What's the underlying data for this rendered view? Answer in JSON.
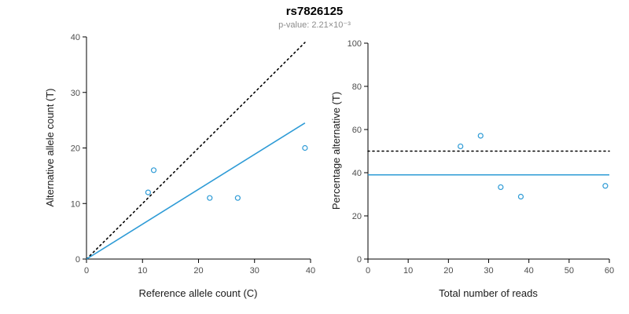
{
  "title": "rs7826125",
  "subtitle": "p-value: 2.21×10⁻³",
  "colors": {
    "points": "#2e9bd6",
    "fit_line": "#2e9bd6",
    "reference_line": "#000000",
    "subtitle_text": "#8c8c8c"
  },
  "chart_data": [
    {
      "type": "scatter",
      "title": "rs7826125",
      "subtitle": "p-value: 2.21×10⁻³",
      "xlabel": "Reference allele count (C)",
      "ylabel": "Alternative allele count (T)",
      "xlim": [
        0,
        40
      ],
      "ylim": [
        0,
        40
      ],
      "xticks": [
        0,
        10,
        20,
        30,
        40
      ],
      "yticks": [
        0,
        10,
        20,
        30,
        40
      ],
      "grid": false,
      "points": [
        [
          11,
          12
        ],
        [
          12,
          16
        ],
        [
          22,
          11
        ],
        [
          27,
          11
        ],
        [
          39,
          20
        ]
      ],
      "lines": [
        {
          "name": "identity-line",
          "style": "dotted",
          "color": "#000000",
          "from": [
            0,
            0
          ],
          "to": [
            39,
            39
          ]
        },
        {
          "name": "fit-line",
          "style": "solid",
          "color": "#2e9bd6",
          "from": [
            0,
            0
          ],
          "to": [
            39,
            24.5
          ]
        }
      ]
    },
    {
      "type": "scatter",
      "xlabel": "Total number of reads",
      "ylabel": "Percentage alternative (T)",
      "xlim": [
        0,
        60
      ],
      "ylim": [
        0,
        100
      ],
      "xticks": [
        0,
        10,
        20,
        30,
        40,
        50,
        60
      ],
      "yticks": [
        0,
        20,
        40,
        60,
        80,
        100
      ],
      "grid": false,
      "points": [
        [
          23,
          52.2
        ],
        [
          28,
          57.1
        ],
        [
          33,
          33.3
        ],
        [
          38,
          28.9
        ],
        [
          59,
          33.9
        ]
      ],
      "lines": [
        {
          "name": "expected-50pct-line",
          "style": "dotted",
          "color": "#000000",
          "from": [
            0,
            50
          ],
          "to": [
            60,
            50
          ]
        },
        {
          "name": "observed-mean-line",
          "style": "solid",
          "color": "#2e9bd6",
          "from": [
            0,
            39
          ],
          "to": [
            60,
            39
          ]
        }
      ]
    }
  ]
}
